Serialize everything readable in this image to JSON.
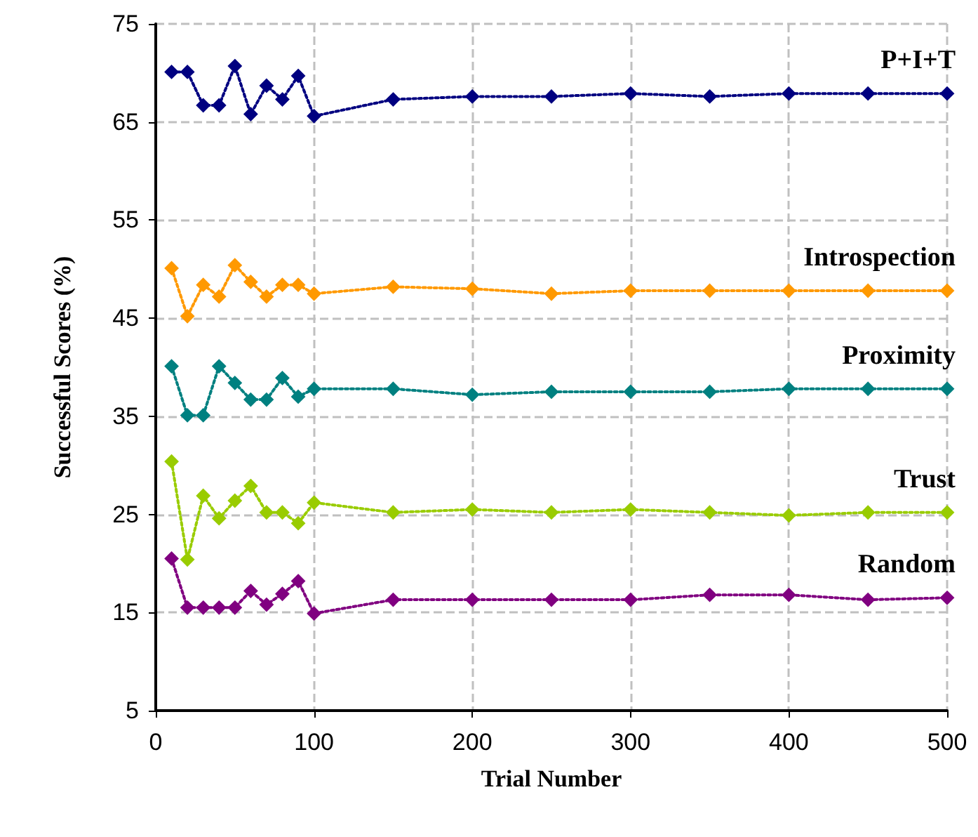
{
  "chart_data": {
    "type": "line",
    "xlabel": "Trial Number",
    "ylabel": "Successful Scores (%)",
    "x": [
      10,
      20,
      30,
      40,
      50,
      60,
      70,
      80,
      90,
      100,
      150,
      200,
      250,
      300,
      350,
      400,
      450,
      500
    ],
    "series": [
      {
        "name": "P+I+T",
        "color": "#000080",
        "values": [
          70.1,
          70.1,
          66.7,
          66.7,
          70.7,
          65.8,
          68.7,
          67.3,
          69.7,
          65.6,
          67.3,
          67.6,
          67.6,
          67.9,
          67.6,
          67.9,
          67.9,
          67.9
        ]
      },
      {
        "name": "Introspection",
        "color": "#ff9900",
        "values": [
          50.1,
          45.2,
          48.4,
          47.2,
          50.4,
          48.7,
          47.2,
          48.4,
          48.4,
          47.5,
          48.2,
          48.0,
          47.5,
          47.8,
          47.8,
          47.8,
          47.8,
          47.8
        ]
      },
      {
        "name": "Proximity",
        "color": "#008080",
        "values": [
          40.1,
          35.1,
          35.1,
          40.1,
          38.4,
          36.7,
          36.7,
          38.9,
          37.0,
          37.8,
          37.8,
          37.2,
          37.5,
          37.5,
          37.5,
          37.8,
          37.8,
          37.8
        ]
      },
      {
        "name": "Trust",
        "color": "#99cc00",
        "values": [
          30.4,
          20.4,
          26.9,
          24.6,
          26.4,
          27.9,
          25.2,
          25.2,
          24.1,
          26.2,
          25.2,
          25.5,
          25.2,
          25.5,
          25.2,
          24.9,
          25.2,
          25.2
        ]
      },
      {
        "name": "Random",
        "color": "#800080",
        "values": [
          20.5,
          15.5,
          15.5,
          15.5,
          15.5,
          17.2,
          15.8,
          16.9,
          18.2,
          14.9,
          16.3,
          16.3,
          16.3,
          16.3,
          16.8,
          16.8,
          16.3,
          16.5
        ]
      }
    ],
    "xlim": [
      0,
      500
    ],
    "xticks": [
      0,
      100,
      200,
      300,
      400,
      500
    ],
    "ylim": [
      5,
      75
    ],
    "yticks": [
      5,
      15,
      25,
      35,
      45,
      55,
      65,
      75
    ],
    "grid": true,
    "legend": false,
    "marker": "diamond",
    "line_style": "dotted"
  }
}
